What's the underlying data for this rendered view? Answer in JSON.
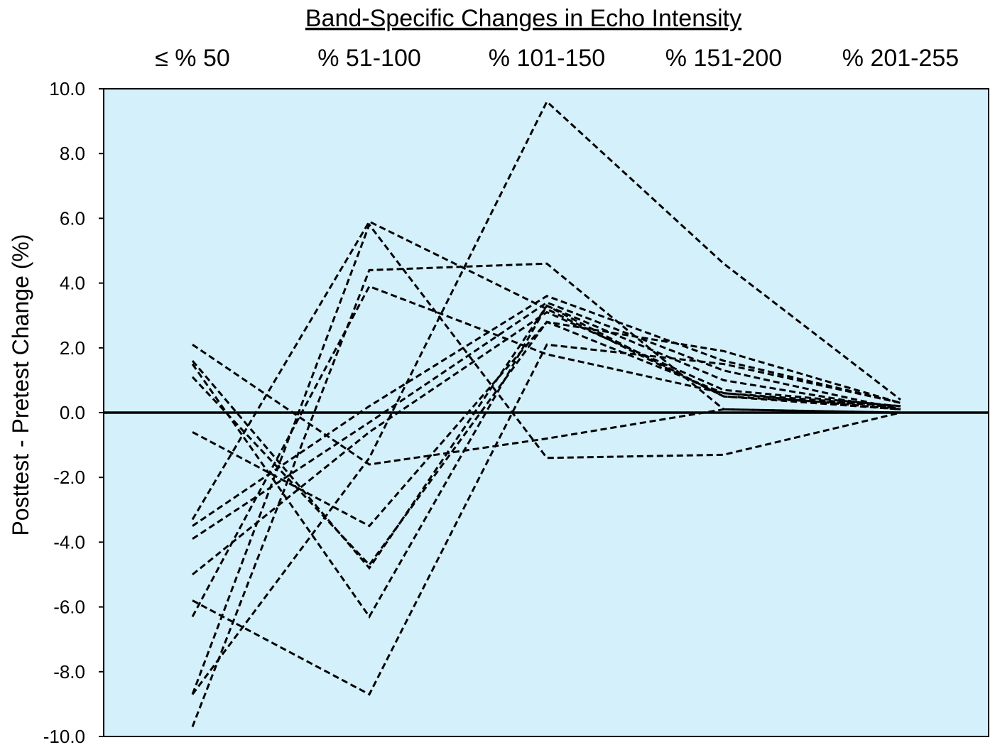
{
  "chart_data": {
    "type": "line",
    "title": "Band-Specific Changes in Echo Intensity",
    "xlabel": "",
    "ylabel": "Posttest - Pretest Change (%)",
    "categories": [
      "≤ % 50",
      "% 51-100",
      "% 101-150",
      "% 151-200",
      "% 201-255"
    ],
    "ylim": [
      -10,
      10
    ],
    "yticks": [
      "10.0",
      "8.0",
      "6.0",
      "4.0",
      "2.0",
      "0.0",
      "-2.0",
      "-4.0",
      "-6.0",
      "-8.0",
      "-10.0"
    ],
    "ytick_values": [
      10,
      8,
      6,
      4,
      2,
      0,
      -2,
      -4,
      -6,
      -8,
      -10
    ],
    "grid": false,
    "zero_line": true,
    "plot_background": "#d4f0fa",
    "line_color": "#000000",
    "line_style": "dashed",
    "series": [
      {
        "values": [
          1.6,
          -4.8,
          3.3,
          0.5,
          0.1
        ]
      },
      {
        "values": [
          1.1,
          -4.7,
          2.8,
          0.6,
          0.2
        ]
      },
      {
        "values": [
          2.1,
          -1.6,
          -0.8,
          0.1,
          0.0
        ]
      },
      {
        "values": [
          -0.6,
          -3.5,
          2.8,
          1.9,
          0.3
        ]
      },
      {
        "values": [
          1.5,
          -6.3,
          3.3,
          1.0,
          0.1
        ]
      },
      {
        "values": [
          -3.3,
          5.9,
          3.2,
          0.5,
          0.2
        ]
      },
      {
        "values": [
          -6.3,
          3.9,
          1.8,
          0.6,
          0.1
        ]
      },
      {
        "values": [
          -9.7,
          4.4,
          4.6,
          0.1,
          0.0
        ]
      },
      {
        "values": [
          -3.5,
          0.2,
          3.6,
          1.6,
          0.3
        ]
      },
      {
        "values": [
          -3.9,
          -0.3,
          3.4,
          1.3,
          0.1
        ]
      },
      {
        "values": [
          -5.0,
          -0.6,
          3.1,
          0.7,
          0.2
        ]
      },
      {
        "values": [
          -5.8,
          -8.7,
          2.1,
          1.5,
          0.3
        ]
      },
      {
        "values": [
          -8.7,
          5.8,
          -1.4,
          -1.3,
          0.0
        ]
      },
      {
        "values": [
          -8.7,
          -1.4,
          9.6,
          4.6,
          0.4
        ]
      }
    ]
  }
}
